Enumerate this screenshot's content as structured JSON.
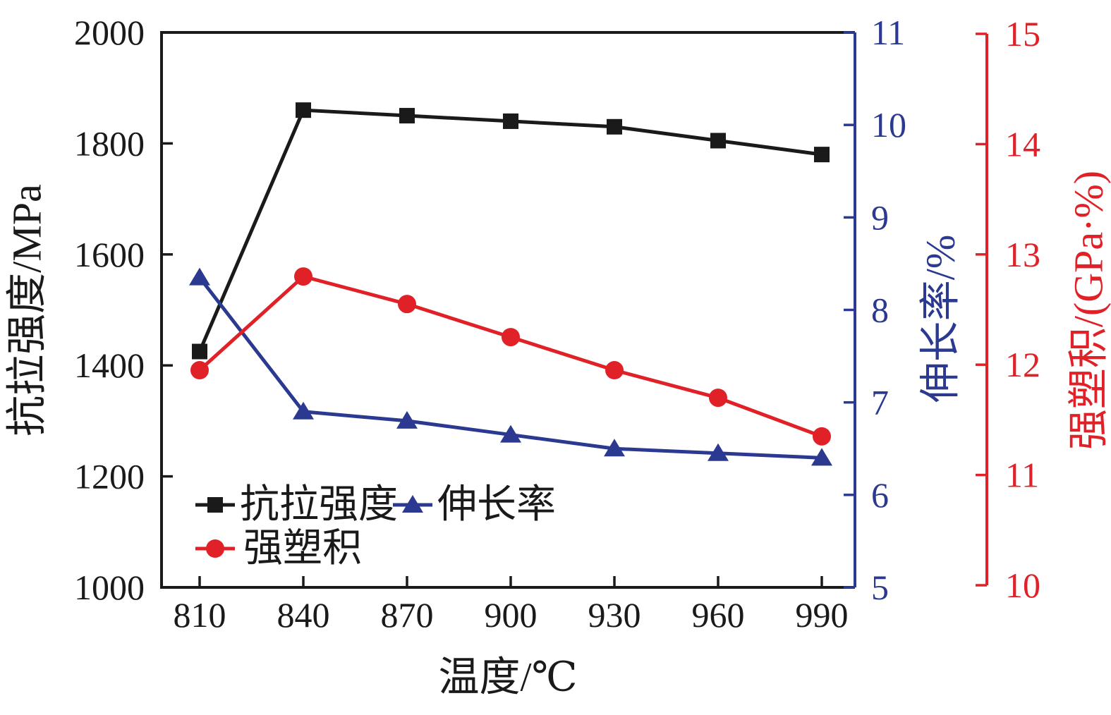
{
  "chart_data": {
    "type": "line",
    "title": "",
    "xlabel": "温度/℃",
    "x_unit": "℃",
    "categories": [
      810,
      840,
      870,
      900,
      930,
      960,
      990
    ],
    "axes": {
      "left": {
        "label": "抗拉强度/MPa",
        "min": 1000,
        "max": 2000,
        "ticks": [
          1000,
          1200,
          1400,
          1600,
          1800,
          2000
        ],
        "color": "#1a1a1a"
      },
      "right_inner": {
        "label": "伸长率/%",
        "min": 5,
        "max": 11,
        "ticks": [
          5,
          6,
          7,
          8,
          9,
          10,
          11
        ],
        "color": "#2b3a90"
      },
      "right_outer": {
        "label": "强塑积/(GPa·%)",
        "min": 10,
        "max": 15,
        "ticks": [
          10,
          11,
          12,
          13,
          14,
          15
        ],
        "color": "#e02127"
      }
    },
    "series": [
      {
        "name": "抗拉强度",
        "axis": "left",
        "marker": "square",
        "color": "#1a1a1a",
        "values": [
          1425,
          1860,
          1850,
          1840,
          1830,
          1805,
          1780
        ]
      },
      {
        "name": "伸长率",
        "axis": "right_inner",
        "marker": "triangle",
        "color": "#2b3a90",
        "values": [
          8.35,
          6.9,
          6.8,
          6.65,
          6.5,
          6.45,
          6.4
        ]
      },
      {
        "name": "强塑积",
        "axis": "right_outer",
        "marker": "circle",
        "color": "#e02127",
        "values": [
          11.95,
          12.8,
          12.55,
          12.25,
          11.95,
          11.7,
          11.35
        ]
      }
    ],
    "legend": {
      "entries": [
        "抗拉强度",
        "伸长率",
        "强塑积"
      ],
      "position": "inside-bottom-left"
    },
    "grid": false
  }
}
